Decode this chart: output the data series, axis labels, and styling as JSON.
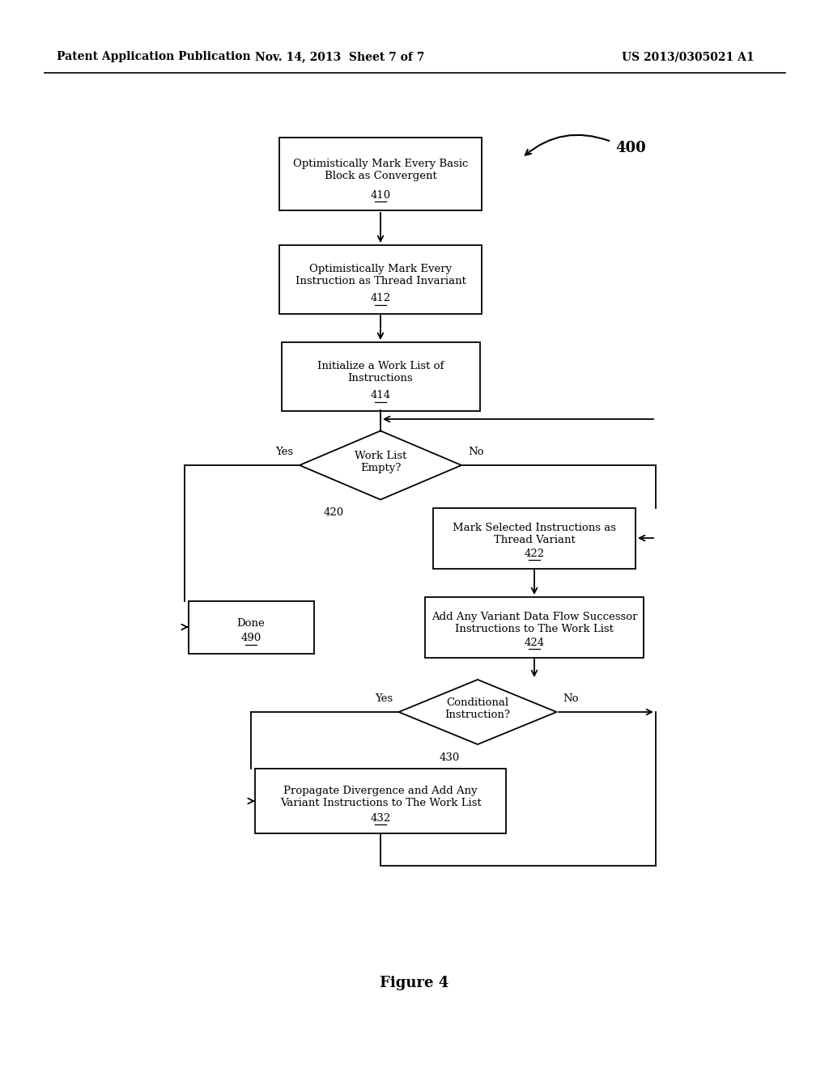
{
  "header_left": "Patent Application Publication",
  "header_mid": "Nov. 14, 2013  Sheet 7 of 7",
  "header_right": "US 2013/0305021 A1",
  "figure_label": "Figure 4",
  "ref_400": "400",
  "bg_color": "#ffffff",
  "font_size": 9.5,
  "header_font_size": 10,
  "fig_label_font_size": 13
}
